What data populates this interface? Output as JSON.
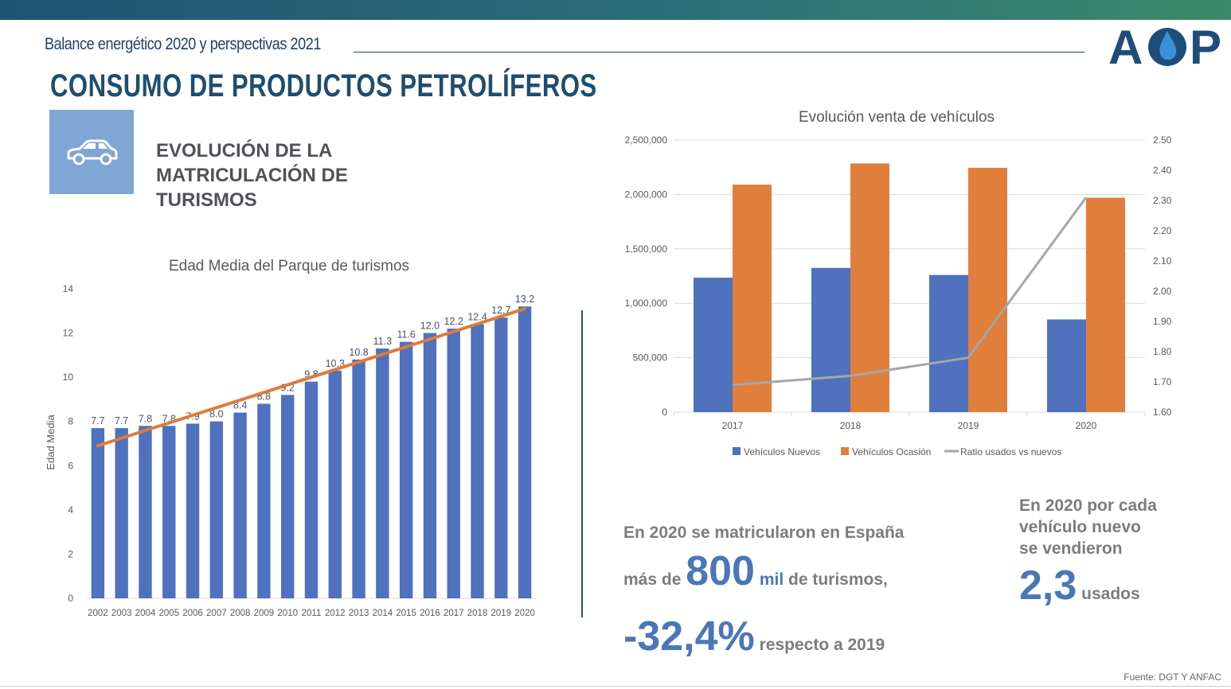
{
  "header": {
    "subtitle": "Balance energético 2020 y perspectivas 2021",
    "title": "CONSUMO DE PRODUCTOS PETROLÍFEROS",
    "logo_text": "AOP",
    "brand_colors": {
      "dark_blue": "#1f4d7a",
      "light_blue": "#3b8fd6"
    }
  },
  "section": {
    "icon": "car-icon",
    "title_lines": [
      "EVOLUCIÓN DE LA",
      "MATRICULACIÓN DE",
      "TURISMOS"
    ]
  },
  "stats": {
    "line1": "En 2020 se matricularon en España",
    "line2_prefix": "más de",
    "line2_big": "800",
    "line2_unit": "mil",
    "line2_suffix": "de turismos,",
    "line3_big": "-32,4%",
    "line3_suffix": "respecto a 2019",
    "ratio_lines": [
      "En 2020 por cada",
      "vehículo nuevo",
      "se vendieron"
    ],
    "ratio_big": "2,3",
    "ratio_suffix": "usados"
  },
  "source": "Fuente: DGT Y ANFAC",
  "chart_data": [
    {
      "type": "bar",
      "title": "Edad Media del Parque de turismos",
      "xlabel": "",
      "ylabel": "Edad Media",
      "ylim": [
        0,
        14
      ],
      "yticks": [
        "0",
        "2",
        "4",
        "6",
        "8",
        "10",
        "12",
        "14"
      ],
      "categories": [
        "2002",
        "2003",
        "2004",
        "2005",
        "2006",
        "2007",
        "2008",
        "2009",
        "2010",
        "2011",
        "2012",
        "2013",
        "2014",
        "2015",
        "2016",
        "2017",
        "2018",
        "2019",
        "2020"
      ],
      "values": [
        7.7,
        7.7,
        7.8,
        7.8,
        7.9,
        8.0,
        8.4,
        8.8,
        9.2,
        9.8,
        10.3,
        10.8,
        11.3,
        11.6,
        12.0,
        12.2,
        12.4,
        12.7,
        13.2
      ],
      "data_labels": [
        "7.7",
        "7.7",
        "7.8",
        "7.8",
        "7.9",
        "8.0",
        "8.4",
        "8.8",
        "9.2",
        "9.8",
        "10.3",
        "10.8",
        "11.3",
        "11.6",
        "12.0",
        "12.2",
        "12.4",
        "12.7",
        "13.2"
      ],
      "trendline": {
        "start": 6.9,
        "end": 13.1,
        "color": "#e07b39"
      },
      "bar_color": "#4f71be",
      "grid": false
    },
    {
      "type": "bar",
      "title": "Evolución venta de vehículos",
      "categories": [
        "2017",
        "2018",
        "2019",
        "2020"
      ],
      "ylim": [
        0,
        2500000
      ],
      "yticks": [
        "0",
        "500,000",
        "1,000,000",
        "1,500,000",
        "2,000,000",
        "2,500,000"
      ],
      "y2lim": [
        1.6,
        2.5
      ],
      "y2ticks": [
        "1.60",
        "1.70",
        "1.80",
        "1.90",
        "2.00",
        "2.10",
        "2.20",
        "2.30",
        "2.40",
        "2.50"
      ],
      "series": [
        {
          "name": "Vehículos Nuevos",
          "type": "bar",
          "color": "#4f71be",
          "values": [
            1235000,
            1325000,
            1260000,
            852000
          ]
        },
        {
          "name": "Vehículos Ocasión",
          "type": "bar",
          "color": "#e07e3c",
          "values": [
            2090000,
            2285000,
            2245000,
            1970000
          ]
        },
        {
          "name": "Ratio usados vs nuevos",
          "type": "line",
          "axis": "secondary",
          "color": "#a6a6a6",
          "values": [
            1.69,
            1.72,
            1.78,
            2.31
          ]
        }
      ],
      "legend_position": "bottom",
      "grid": true
    }
  ]
}
